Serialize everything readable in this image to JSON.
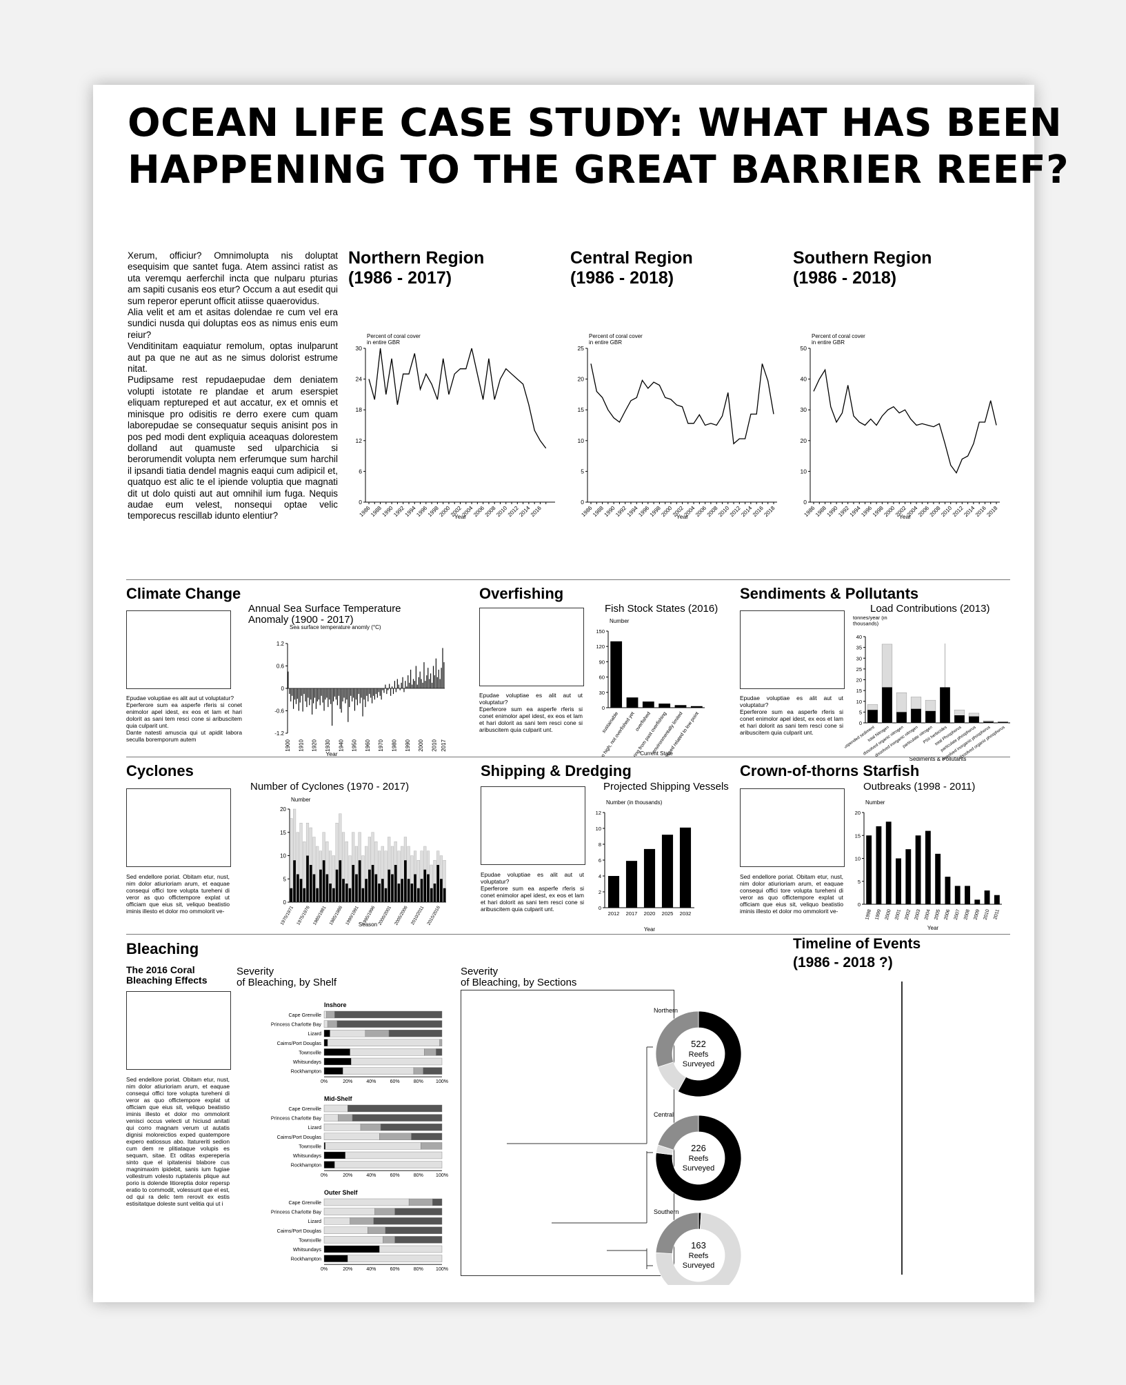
{
  "title": {
    "line1": "OCEAN LIFE CASE STUDY: WHAT HAS BEEN",
    "line2": "HAPPENING TO THE GREAT BARRIER REEF?"
  },
  "intro": {
    "p1": "Xerum, officiur? Omnimolupta nis doluptat esequisim que santet fuga. Atem assinci ratist as uta veremqu aerferchil incta que nulparu pturias am sapiti cusanis eos etur? Occum a aut esedit qui sum reperor eperunt officit atiisse quaerovidus.",
    "p2": "Alia velit et am et asitas dolendae re cum vel era sundici nusda qui doluptas eos as nimus enis eum reiur?",
    "p3": "Venditinitam eaquiatur remolum, optas inulparunt aut pa que ne aut as ne simus dolorist estrume nitat.",
    "p4": "Pudipsame rest repudaepudae dem deniatem volupti istotate re plandae et arum eserspiet eliquam reptureped et aut accatur, ex et omnis et minisque pro odisitis re derro exere cum quam laborepudae se consequatur sequis anisint pos in pos ped modi dent expliquia aceaquas dolorestem dolland aut quamuste sed ulparchicia si berorumendit volupta nem erferumque sum harchil il ipsandi tiatia dendel magnis eaqui cum adipicil et, quatquo est alic te el ipiende voluptia que magnati dit ut dolo quisti aut aut omnihil ium fuga. Nequis audae eum velest, nonsequi optae velic temporecus rescillab idunto elentiur?"
  },
  "regions": [
    {
      "title1": "Northern Region",
      "title2": "(1986 - 2017)"
    },
    {
      "title1": "Central Region",
      "title2": "(1986 - 2018)"
    },
    {
      "title1": "Southern Region",
      "title2": "(1986 - 2018)"
    }
  ],
  "sections": {
    "climate": "Climate Change",
    "overfishing": "Overfishing",
    "sediments": "Sendiments & Pollutants",
    "cyclones": "Cyclones",
    "shipping": "Shipping & Dredging",
    "cots": "Crown-of-thorns Starfish",
    "bleaching": "Bleaching",
    "timeline1": "Timeline of Events",
    "timeline2": "(1986 - 2018 ?)"
  },
  "chart_titles": {
    "sst1": "Annual Sea Surface Temperature",
    "sst2": "Anomaly (1900 - 2017)",
    "fish": "Fish Stock States (2016)",
    "load": "Load Contributions (2013)",
    "cyclones": "Number of Cyclones (1970 - 2017)",
    "shipping": "Projected Shipping Vessels",
    "cots": "Outbreaks (1998 - 2011)",
    "bshelf1": "Severity",
    "bshelf2": "of Bleaching, by Shelf",
    "bsec1": "Severity",
    "bsec2": "of Bleaching, by Sections"
  },
  "texts": {
    "epudae1": "Epudae voluptiae es alit aut ut voluptatur?",
    "eperferore": "Eperferore sum ea asperfe rferis si conet enimolor apel idest, ex eos et lam et hari dolorit as sani tem resci cone si aribuscitem quia culparit unt.",
    "dante": "Dante natesti amuscia qui ut apidit labora seculla boremporum autem",
    "sed_short": "Sed endellore poriat. Obitam etur, nust, nim dolor atiurioriam arum, et eaquae consequi offici tore volupta tureheni di veror as quo offictempore explat ut officiam que eius sit, veliquo beatistio iminis illesto et dolor mo ommolorit ve-",
    "coral_heading": "The 2016 Coral Bleaching Effects",
    "sed_long": "Sed endellore poriat. Obitam etur, nust, nim dolor atiurioriam arum, et eaquae consequi offici tore volupta tureheni di veror as quo offictempore explat ut officiam que eius sit, veliquo beatistio iminis illesto et dolor mo ommolorit venisci occus velecti ut hiciusd anitati qui corro magnam verum ut autatis dignisi moloreictios exped quatempore expero eatiossus abo. Itatureriti sedion cum dem re plitiataque volupis es sequam, sitae. Et oditas expereperia sinto que el ipitatenisi blabore cus magnimaxim ipidebit, sanis ium fugiae vollestrum volesto ruptatenis plique aut porio is dolende litioreptia dolor repersp eratio to commodit, volessunt que el est, od qui ra delic tem rerovit ex estis estisitatque doleste sunt velitia qui ut i"
  },
  "chart_data": [
    {
      "type": "line",
      "id": "north",
      "title": "",
      "ylabel": "Percent of coral cover in entire GBR",
      "xlabel": "Year",
      "ylim": [
        0,
        30
      ],
      "yticks": [
        0,
        6,
        12,
        18,
        24,
        30
      ],
      "xticks": [
        "1986",
        "1988",
        "1990",
        "1992",
        "1994",
        "1996",
        "1998",
        "2000",
        "2002",
        "2004",
        "2006",
        "2008",
        "2010",
        "2012",
        "2014",
        "2016"
      ],
      "x": [
        1986,
        1987,
        1988,
        1989,
        1990,
        1991,
        1992,
        1993,
        1994,
        1995,
        1996,
        1997,
        1998,
        1999,
        2000,
        2001,
        2002,
        2003,
        2004,
        2005,
        2006,
        2007,
        2008,
        2009,
        2010,
        2011,
        2012,
        2013,
        2014,
        2015,
        2016,
        2017
      ],
      "values": [
        24,
        20,
        30,
        21,
        28,
        19,
        25,
        25,
        29,
        22,
        25,
        23,
        20,
        28,
        21,
        25,
        26,
        26,
        30,
        25,
        20,
        28,
        20,
        24,
        26,
        25,
        24,
        23,
        19,
        14,
        12,
        10.5
      ]
    },
    {
      "type": "line",
      "id": "central",
      "title": "",
      "ylabel": "Percent of coral cover in entire GBR",
      "xlabel": "Year",
      "ylim": [
        0,
        25
      ],
      "yticks": [
        0,
        5,
        10,
        15,
        20,
        25
      ],
      "xticks": [
        "1986",
        "1988",
        "1990",
        "1992",
        "1994",
        "1996",
        "1998",
        "2000",
        "2002",
        "2004",
        "2006",
        "2008",
        "2010",
        "2012",
        "2014",
        "2016",
        "2018"
      ],
      "x": [
        1986,
        1987,
        1988,
        1989,
        1990,
        1991,
        1992,
        1993,
        1994,
        1995,
        1996,
        1997,
        1998,
        1999,
        2000,
        2001,
        2002,
        2003,
        2004,
        2005,
        2006,
        2007,
        2008,
        2009,
        2010,
        2011,
        2012,
        2013,
        2014,
        2015,
        2016,
        2017,
        2018
      ],
      "values": [
        22.5,
        18,
        17,
        15,
        13.7,
        13,
        14.8,
        16.5,
        17,
        19.8,
        18.5,
        19.5,
        19,
        17,
        16.7,
        15.8,
        15.5,
        12.8,
        12.8,
        14.2,
        12.5,
        12.8,
        12.5,
        14,
        17.8,
        9.5,
        10.3,
        10.3,
        14.3,
        14.3,
        22.5,
        19.7,
        14.3
      ]
    },
    {
      "type": "line",
      "id": "south",
      "title": "",
      "ylabel": "Percent of coral cover in entire GBR",
      "xlabel": "Year",
      "ylim": [
        0,
        50
      ],
      "yticks": [
        0,
        10,
        20,
        30,
        40,
        50
      ],
      "xticks": [
        "1986",
        "1988",
        "1990",
        "1992",
        "1994",
        "1996",
        "1998",
        "2000",
        "2002",
        "2004",
        "2006",
        "2008",
        "2010",
        "2012",
        "2014",
        "2016",
        "2018"
      ],
      "x": [
        1986,
        1987,
        1988,
        1989,
        1990,
        1991,
        1992,
        1993,
        1994,
        1995,
        1996,
        1997,
        1998,
        1999,
        2000,
        2001,
        2002,
        2003,
        2004,
        2005,
        2006,
        2007,
        2008,
        2009,
        2010,
        2011,
        2012,
        2013,
        2014,
        2015,
        2016,
        2017,
        2018
      ],
      "values": [
        36,
        40,
        43,
        31,
        26,
        29,
        38,
        28,
        26,
        25,
        27,
        25,
        28,
        30,
        31,
        29,
        30,
        27,
        25,
        25.5,
        25,
        24.5,
        25.5,
        19,
        12,
        9.5,
        14,
        15,
        19,
        26,
        26,
        33,
        25
      ]
    },
    {
      "type": "bar",
      "id": "sst",
      "title": "Annual Sea Surface Temperature Anomaly (1900 - 2017)",
      "ylabel": "Sea surface temperature anomly (°C)",
      "xlabel": "Year",
      "ylim": [
        -1.2,
        1.2
      ],
      "yticks": [
        -1.2,
        -0.6,
        0.0,
        0.6,
        1.2
      ],
      "xticks": [
        "1900",
        "1910",
        "1920",
        "1930",
        "1940",
        "1950",
        "1960",
        "1970",
        "1980",
        "1990",
        "2000",
        "2010",
        "2017"
      ],
      "x_start": 1900,
      "values": [
        0.45,
        -0.15,
        -0.35,
        -0.2,
        -0.55,
        -0.3,
        -0.42,
        -0.28,
        -0.6,
        -0.38,
        -0.2,
        -0.62,
        -0.15,
        -0.35,
        -0.5,
        -0.25,
        -0.45,
        -0.3,
        -0.7,
        -0.4,
        -0.25,
        -0.55,
        -0.35,
        -0.3,
        -0.45,
        -0.2,
        -0.38,
        -0.6,
        -0.3,
        -0.25,
        -0.5,
        -0.3,
        -0.42,
        -1.0,
        -0.35,
        -0.22,
        -0.3,
        -0.45,
        -0.2,
        -0.55,
        -0.65,
        -0.35,
        -0.25,
        -0.4,
        -0.3,
        -0.9,
        -0.5,
        -0.2,
        -0.35,
        -0.25,
        -0.6,
        -0.3,
        -0.45,
        -0.15,
        -0.4,
        -0.25,
        -0.75,
        -0.3,
        -0.5,
        -0.2,
        -0.35,
        -0.15,
        -0.25,
        -0.4,
        -0.2,
        -0.3,
        -0.15,
        -0.25,
        -0.1,
        -0.2,
        -0.3,
        -0.05,
        -0.12,
        0.1,
        -0.15,
        -0.05,
        0.12,
        -0.2,
        0.05,
        -0.15,
        0.2,
        -0.1,
        0.25,
        0.1,
        -0.05,
        0.15,
        0.3,
        -0.1,
        0.2,
        0.05,
        0.35,
        0.15,
        0.5,
        0.1,
        0.25,
        0.2,
        0.6,
        0.1,
        0.3,
        0.45,
        0.25,
        0.15,
        0.7,
        0.2,
        0.35,
        0.55,
        0.25,
        0.4,
        0.15,
        0.6,
        0.35,
        0.8,
        0.3,
        0.5,
        0.25,
        0.55,
        1.08,
        0.7
      ]
    },
    {
      "type": "bar",
      "id": "fish",
      "title": "Fish Stock States (2016)",
      "ylabel": "Number",
      "xlabel": "Current State",
      "ylim": [
        0,
        150
      ],
      "yticks": [
        0,
        30,
        60,
        90,
        120,
        150
      ],
      "categories": [
        "sustainable",
        "fishing too high, not overfished yet",
        "overfished",
        "recovering from past overfishing",
        "environmentally limited",
        "assessed related to low point"
      ],
      "values": [
        130,
        20,
        12,
        8,
        5,
        3
      ]
    },
    {
      "type": "bar",
      "id": "load",
      "title": "Load Contributions (2013)",
      "ylabel": "tonnes/year (in thousands)",
      "xlabel": "Sediments & Pollutants",
      "ylim": [
        0,
        40
      ],
      "yticks": [
        0,
        5,
        10,
        15,
        20,
        25,
        30,
        35,
        40
      ],
      "categories": [
        "suspended sediment",
        "total Nitrogen",
        "dissolved organic nitrogen",
        "dissolved inorganic nitrogen",
        "particulate nitrogen",
        "PSII herbicides",
        "total Phosphorus",
        "particulate phosphorus",
        "dissolved inorganic phosphorus",
        "dissolved organic phosphorus"
      ],
      "series": [
        {
          "name": "",
          "values": [
            6,
            16.5,
            5,
            6.5,
            5.5,
            16.5,
            3.5,
            3,
            0.6,
            0.4
          ]
        },
        {
          "name": "",
          "values": [
            8.5,
            36.5,
            14,
            12,
            10.5,
            0,
            6,
            4.5,
            1,
            0.6
          ]
        }
      ]
    },
    {
      "type": "bar",
      "id": "cyclones",
      "title": "Number of Cyclones (1970 - 2017)",
      "ylabel": "Number",
      "xlabel": "Season",
      "ylim": [
        0,
        20
      ],
      "yticks": [
        0,
        5,
        10,
        15,
        20
      ],
      "xticks": [
        "1970/1971",
        "1975/1976",
        "1980/1981",
        "1985/1986",
        "1990/1991",
        "1995/1996",
        "2000/2001",
        "2005/2006",
        "2010/2011",
        "2015/2016"
      ],
      "series": [
        {
          "name": "",
          "values": [
            3,
            9,
            6,
            5,
            3,
            10,
            8,
            6,
            3,
            7,
            9,
            6,
            4,
            3,
            7,
            9,
            5,
            4,
            3,
            8,
            6,
            9,
            3,
            5,
            7,
            8,
            6,
            4,
            5,
            3,
            7,
            6,
            8,
            4,
            5,
            9,
            5,
            4,
            6,
            3,
            5,
            7,
            6,
            3,
            4,
            8,
            5,
            3
          ]
        },
        {
          "name": "",
          "values": [
            18,
            20,
            15,
            17,
            13,
            17,
            16,
            14,
            12,
            11,
            15,
            13,
            11,
            10,
            17,
            19,
            15,
            13,
            10,
            15,
            12,
            15,
            10,
            12,
            14,
            15,
            13,
            11,
            12,
            11,
            14,
            12,
            13,
            11,
            12,
            14,
            12,
            10,
            11,
            9,
            11,
            12,
            11,
            8,
            9,
            11,
            10,
            9
          ]
        }
      ]
    },
    {
      "type": "bar",
      "id": "shipping",
      "title": "Projected Shipping Vessels",
      "ylabel": "Number (in thousands)",
      "xlabel": "Year",
      "ylim": [
        0,
        12
      ],
      "yticks": [
        0,
        2,
        4,
        6,
        8,
        10,
        12
      ],
      "categories": [
        "2012",
        "2017",
        "2020",
        "2025",
        "2032"
      ],
      "values": [
        4,
        5.9,
        7.4,
        9.2,
        10.1
      ]
    },
    {
      "type": "bar",
      "id": "cots",
      "title": "Outbreaks (1998 - 2011)",
      "ylabel": "Number",
      "xlabel": "Year",
      "ylim": [
        0,
        20
      ],
      "yticks": [
        0,
        5,
        10,
        15,
        20
      ],
      "categories": [
        "1998",
        "1999",
        "2000",
        "2001",
        "2002",
        "2003",
        "2004",
        "2005",
        "2006",
        "2007",
        "2008",
        "2009",
        "2010",
        "2011"
      ],
      "values": [
        15,
        17,
        18,
        10,
        12,
        15,
        16,
        11,
        6,
        4,
        4,
        1,
        3,
        2
      ]
    },
    {
      "type": "bar",
      "id": "bleach_shelf",
      "title": "Severity of Bleaching, by Shelf",
      "xticks": [
        "0%",
        "20%",
        "40%",
        "60%",
        "80%",
        "100%"
      ],
      "categories": [
        "Cape Grenville",
        "Princess Charlotte Bay",
        "Lizard",
        "Cairns/Port Douglas",
        "Townsville",
        "Whitsundays",
        "Rockhampton"
      ],
      "groups": [
        {
          "name": "Inshore",
          "rows": [
            [
              0,
              2,
              7,
              91
            ],
            [
              0,
              3,
              8,
              89
            ],
            [
              5,
              30,
              20,
              45
            ],
            [
              3,
              95,
              2,
              0
            ],
            [
              22,
              63,
              10,
              5
            ],
            [
              23,
              77,
              0,
              0
            ],
            [
              16,
              60,
              8,
              16
            ]
          ]
        },
        {
          "name": "Mid-Shelf",
          "rows": [
            [
              0,
              20,
              0,
              80
            ],
            [
              0,
              12,
              12,
              76
            ],
            [
              0,
              31,
              17,
              52
            ],
            [
              0,
              47,
              27,
              26
            ],
            [
              1,
              81,
              18,
              0
            ],
            [
              18,
              82,
              0,
              0
            ],
            [
              9,
              91,
              0,
              0
            ]
          ]
        },
        {
          "name": "Outer Shelf",
          "rows": [
            [
              0,
              72,
              20,
              8
            ],
            [
              0,
              43,
              17,
              40
            ],
            [
              0,
              22,
              20,
              58
            ],
            [
              0,
              37,
              15,
              48
            ],
            [
              0,
              50,
              10,
              40
            ],
            [
              47,
              53,
              0,
              0
            ],
            [
              20,
              80,
              0,
              0
            ]
          ]
        }
      ]
    },
    {
      "type": "pie",
      "id": "bleach_sections",
      "title": "Severity of Bleaching, by Sections",
      "groups": [
        {
          "name": "Northern",
          "label": "522 Reefs Surveyed",
          "values": [
            58,
            12,
            30
          ]
        },
        {
          "name": "Central",
          "label": "226 Reefs Surveyed",
          "values": [
            77,
            3,
            20
          ]
        },
        {
          "name": "Southern",
          "label": "163 Reefs Surveyed",
          "values": [
            1,
            75,
            24
          ]
        }
      ]
    }
  ]
}
